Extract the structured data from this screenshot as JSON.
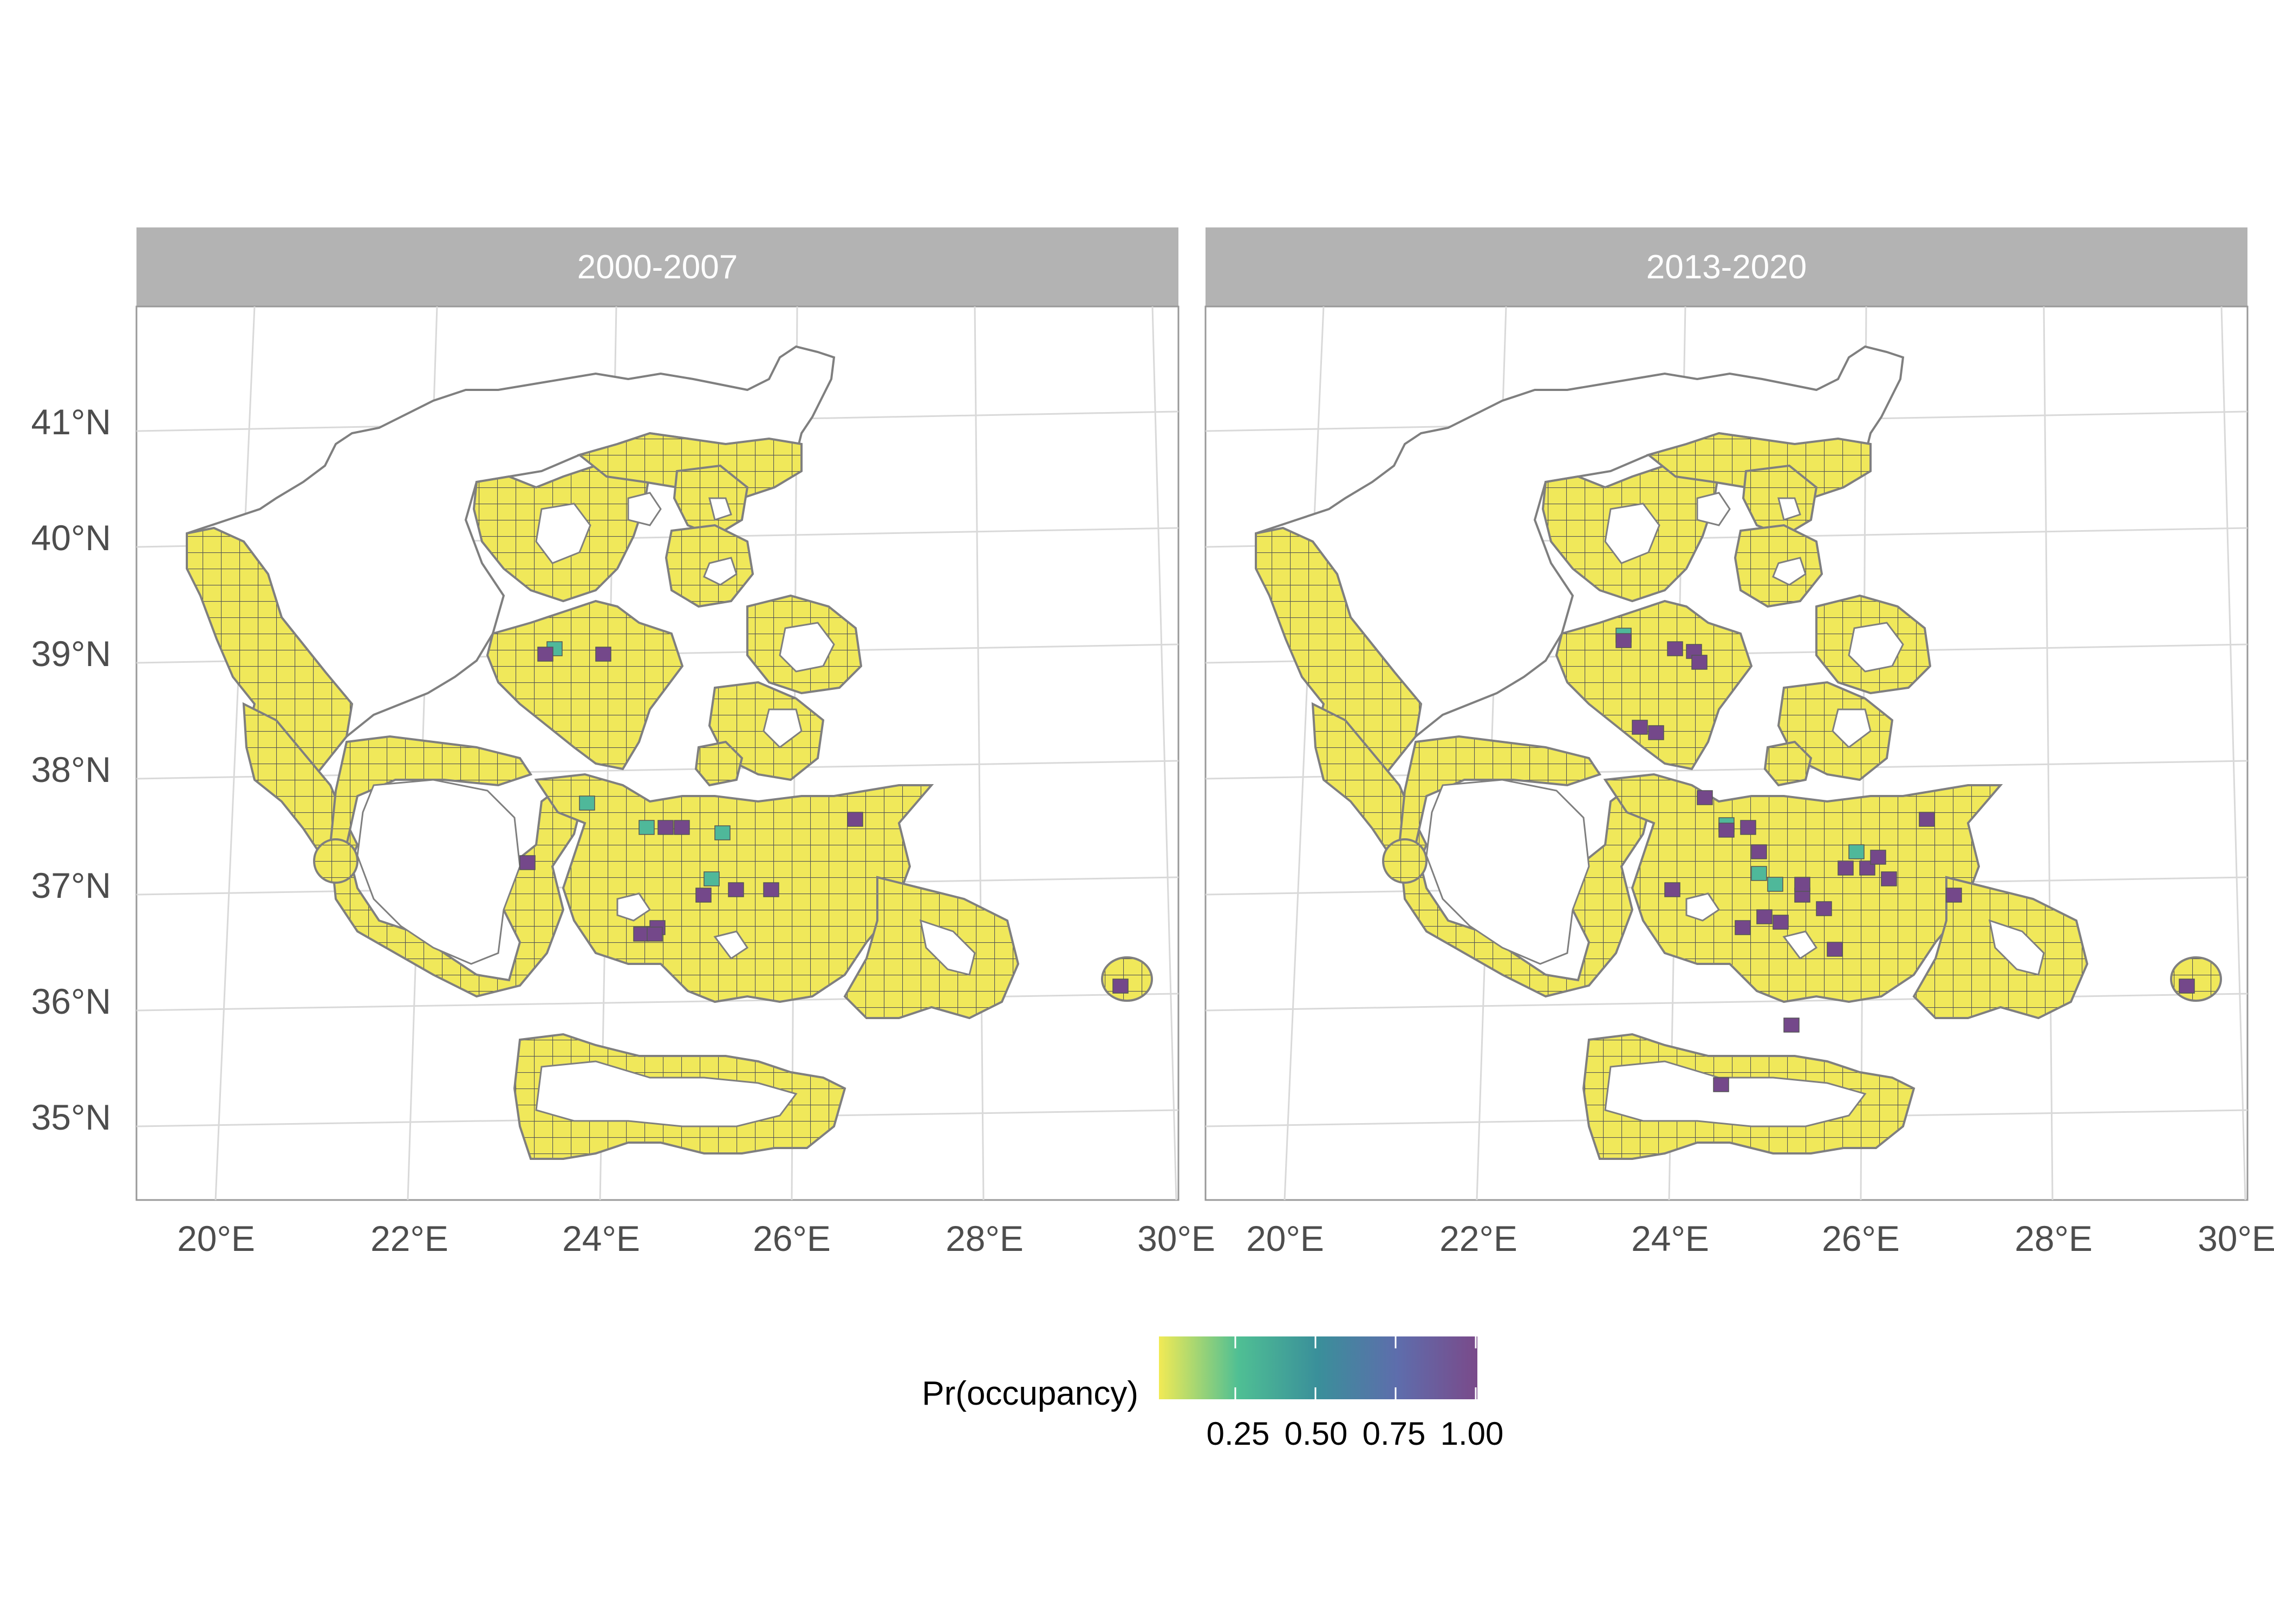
{
  "facets": [
    {
      "label": "2000-2007"
    },
    {
      "label": "2013-2020"
    }
  ],
  "axes": {
    "x_ticks": [
      "20°E",
      "22°E",
      "24°E",
      "26°E",
      "28°E",
      "30°E"
    ],
    "y_ticks": [
      "35°N",
      "36°N",
      "37°N",
      "38°N",
      "39°N",
      "40°N",
      "41°N"
    ]
  },
  "legend": {
    "title": "Pr(occupancy)",
    "ticks": [
      "0.25",
      "0.50",
      "0.75",
      "1.00"
    ],
    "colors": [
      "#f1ea55",
      "#4fbf94",
      "#3a8f9a",
      "#5e6dac",
      "#7a4a8a"
    ]
  },
  "colors": {
    "strip_background": "#b3b3b3",
    "grid": "#d9d9d9",
    "panel_border": "#999999",
    "land_outline": "#7f7f7f",
    "cell_fill": "#f0e85a",
    "cell_line": "#555555",
    "high_occupancy": "#74488a",
    "mid_occupancy": "#4fb89a"
  }
}
